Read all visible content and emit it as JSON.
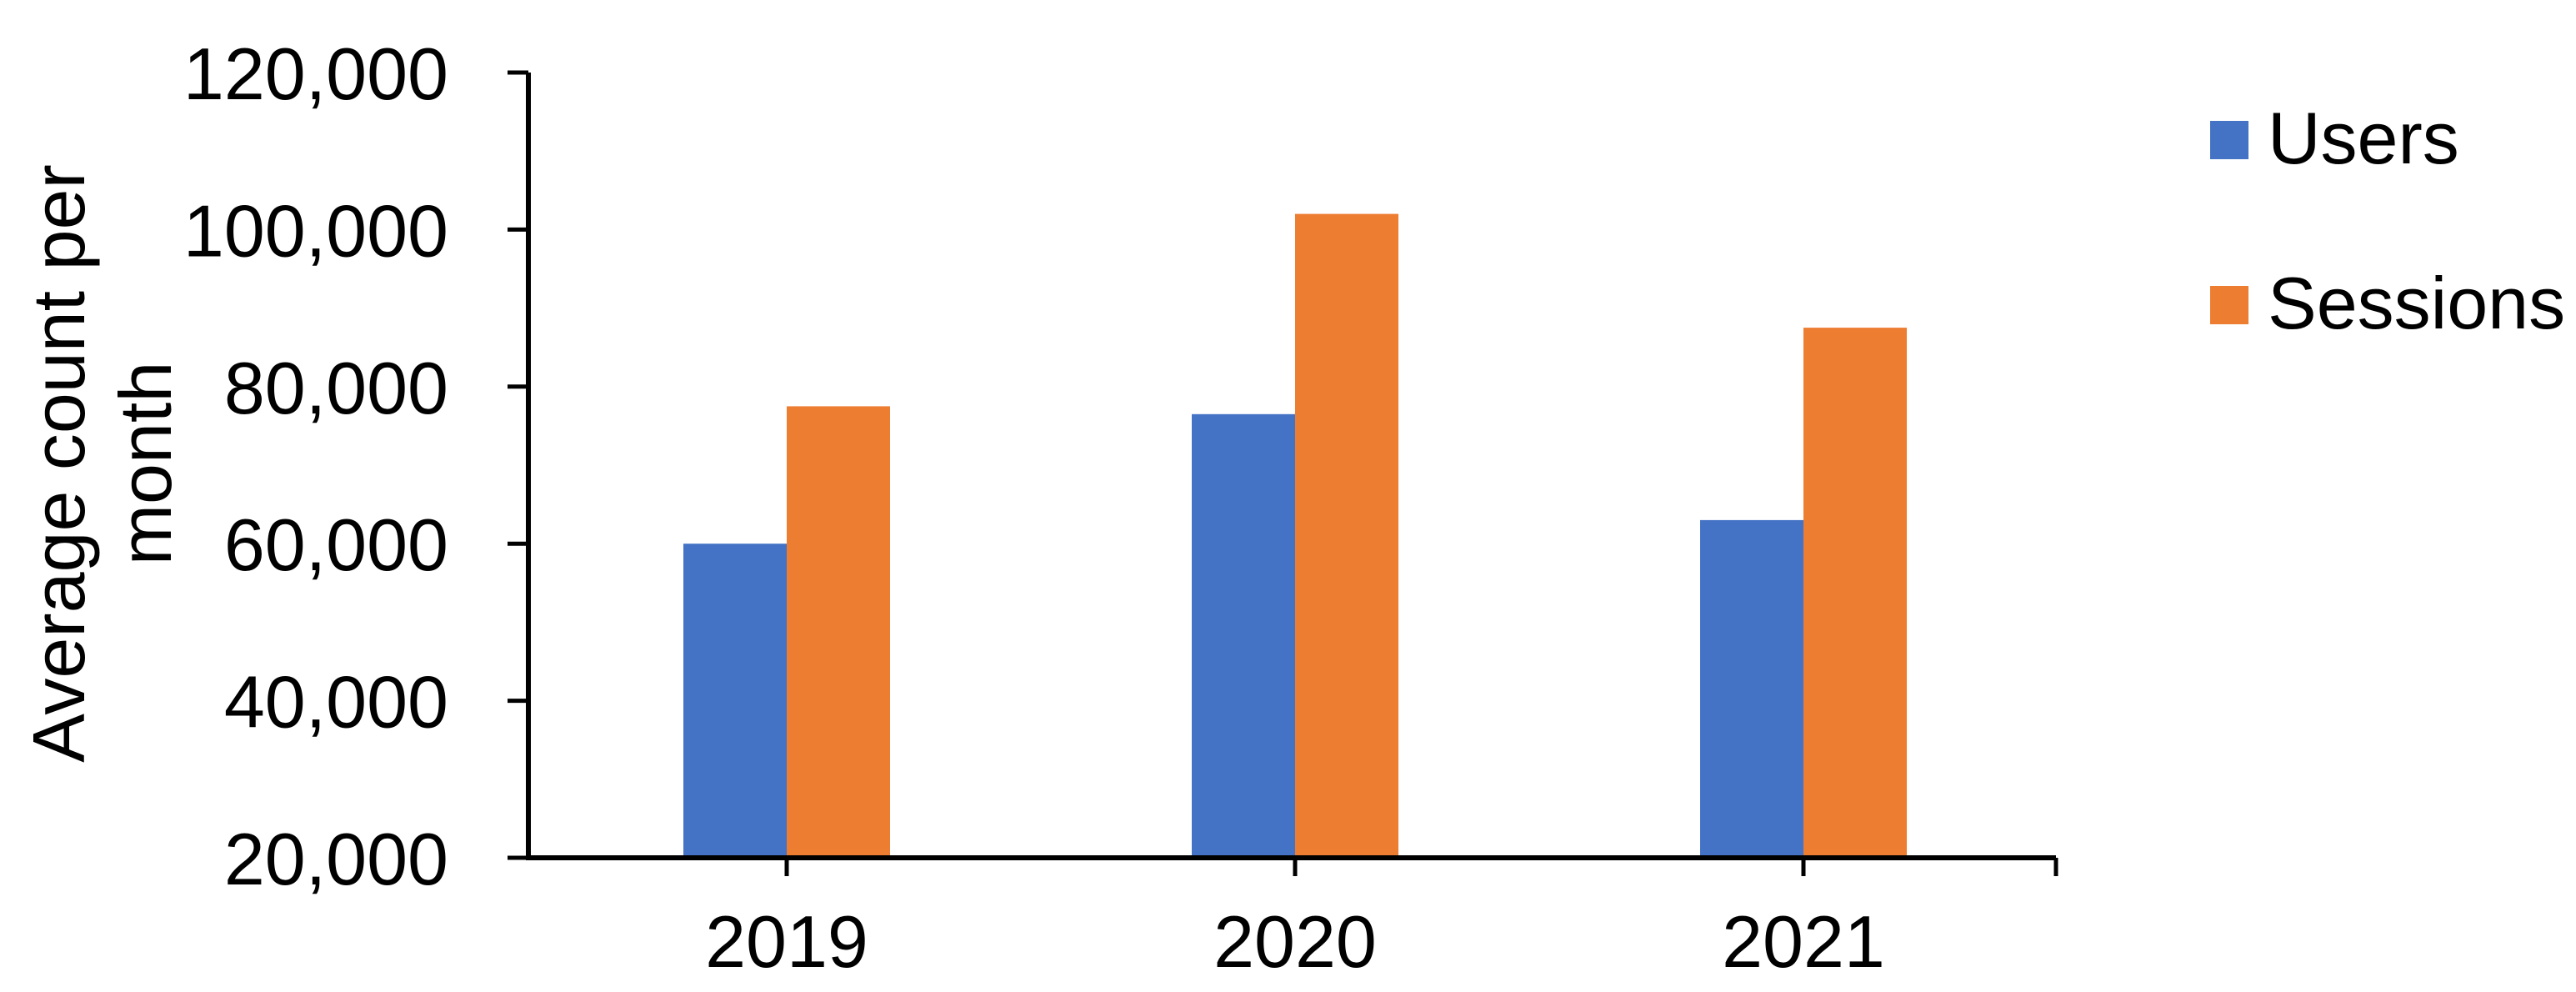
{
  "chart_data": {
    "type": "bar",
    "title": "",
    "categories": [
      "2019",
      "2020",
      "2021"
    ],
    "series": [
      {
        "name": "Users",
        "color": "#4472C4",
        "values": [
          60000,
          76500,
          63000
        ]
      },
      {
        "name": "Sessions",
        "color": "#ED7D31",
        "values": [
          77500,
          102000,
          87500
        ]
      }
    ],
    "xlabel": "",
    "ylabel": "Average count per month",
    "ylabel_lines": [
      "Average count per",
      "month"
    ],
    "ylim": [
      20000,
      120000
    ],
    "y_ticks": [
      {
        "value": 20000,
        "label": "20,000"
      },
      {
        "value": 40000,
        "label": "40,000"
      },
      {
        "value": 60000,
        "label": "60,000"
      },
      {
        "value": 80000,
        "label": "80,000"
      },
      {
        "value": 100000,
        "label": "100,000"
      },
      {
        "value": 120000,
        "label": "120,000"
      }
    ],
    "grid": false,
    "legend_position": "right",
    "legend": [
      "Users",
      "Sessions"
    ],
    "axis_color": "#000000",
    "text_color": "#000000",
    "background": "#FFFFFF"
  }
}
